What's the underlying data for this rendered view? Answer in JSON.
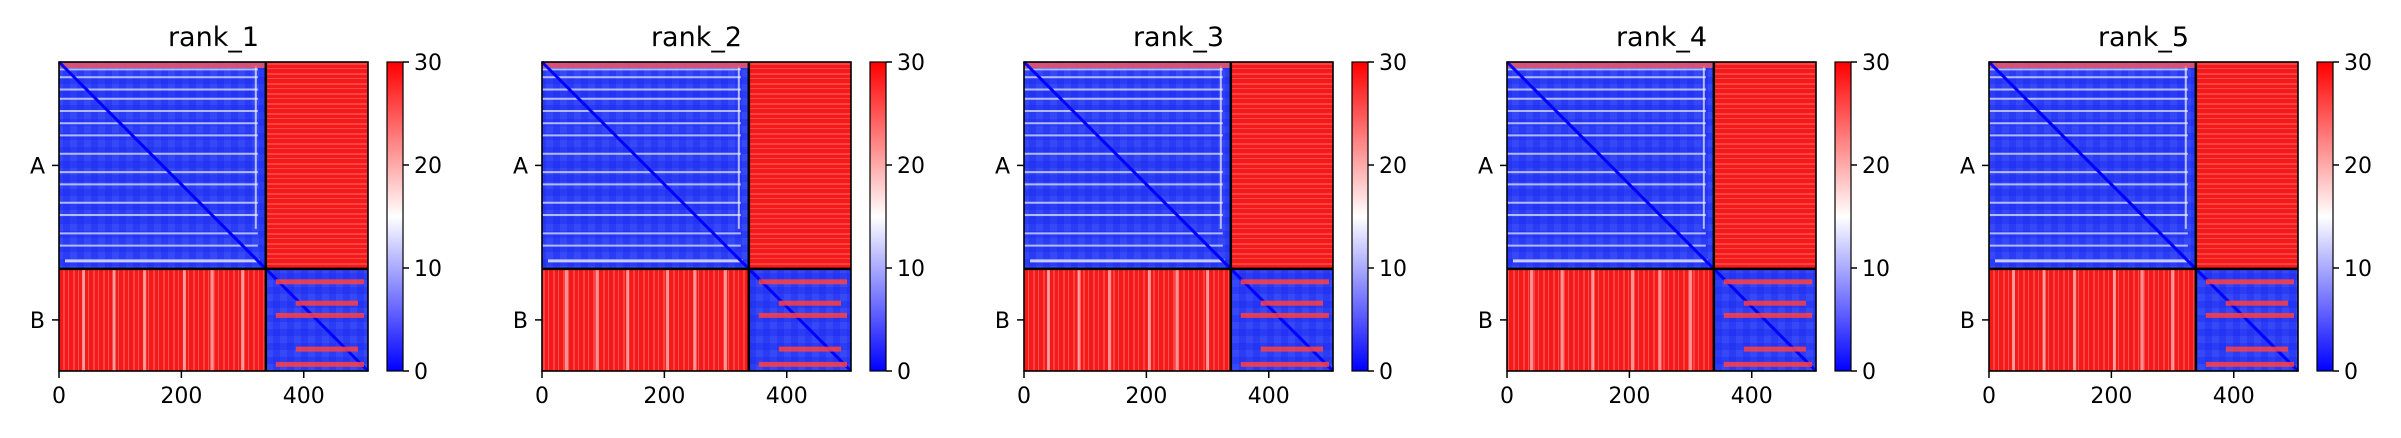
{
  "figure": {
    "panel_titles": [
      "rank_1",
      "rank_2",
      "rank_3",
      "rank_4",
      "rank_5"
    ]
  },
  "chart_data": [
    {
      "type": "heatmap",
      "title": "rank_1",
      "xticks": [
        0,
        200,
        400
      ],
      "xlim": [
        0,
        505
      ],
      "chain_labels": [
        "A",
        "B"
      ],
      "chain_boundary": 338,
      "colorbar": {
        "ticks": [
          0,
          10,
          20,
          30
        ],
        "range": [
          0,
          30
        ],
        "colormap": [
          "#0000ff",
          "#ffffff",
          "#ff0000"
        ]
      },
      "intra_chain_value": "low (blue)",
      "inter_chain_value": "high (red)"
    },
    {
      "type": "heatmap",
      "title": "rank_2",
      "xticks": [
        0,
        200,
        400
      ],
      "xlim": [
        0,
        505
      ],
      "chain_labels": [
        "A",
        "B"
      ],
      "chain_boundary": 338,
      "colorbar": {
        "ticks": [
          0,
          10,
          20,
          30
        ],
        "range": [
          0,
          30
        ],
        "colormap": [
          "#0000ff",
          "#ffffff",
          "#ff0000"
        ]
      },
      "intra_chain_value": "low (blue)",
      "inter_chain_value": "high (red)"
    },
    {
      "type": "heatmap",
      "title": "rank_3",
      "xticks": [
        0,
        200,
        400
      ],
      "xlim": [
        0,
        505
      ],
      "chain_labels": [
        "A",
        "B"
      ],
      "chain_boundary": 338,
      "colorbar": {
        "ticks": [
          0,
          10,
          20,
          30
        ],
        "range": [
          0,
          30
        ],
        "colormap": [
          "#0000ff",
          "#ffffff",
          "#ff0000"
        ]
      },
      "intra_chain_value": "low (blue)",
      "inter_chain_value": "high (red)"
    },
    {
      "type": "heatmap",
      "title": "rank_4",
      "xticks": [
        0,
        200,
        400
      ],
      "xlim": [
        0,
        505
      ],
      "chain_labels": [
        "A",
        "B"
      ],
      "chain_boundary": 338,
      "colorbar": {
        "ticks": [
          0,
          10,
          20,
          30
        ],
        "range": [
          0,
          30
        ],
        "colormap": [
          "#0000ff",
          "#ffffff",
          "#ff0000"
        ]
      },
      "intra_chain_value": "low (blue)",
      "inter_chain_value": "high (red)"
    },
    {
      "type": "heatmap",
      "title": "rank_5",
      "xticks": [
        0,
        200,
        400
      ],
      "xlim": [
        0,
        505
      ],
      "chain_labels": [
        "A",
        "B"
      ],
      "chain_boundary": 338,
      "colorbar": {
        "ticks": [
          0,
          10,
          20,
          30
        ],
        "range": [
          0,
          30
        ],
        "colormap": [
          "#0000ff",
          "#ffffff",
          "#ff0000"
        ]
      },
      "intra_chain_value": "low (blue)",
      "inter_chain_value": "high (red)"
    }
  ]
}
